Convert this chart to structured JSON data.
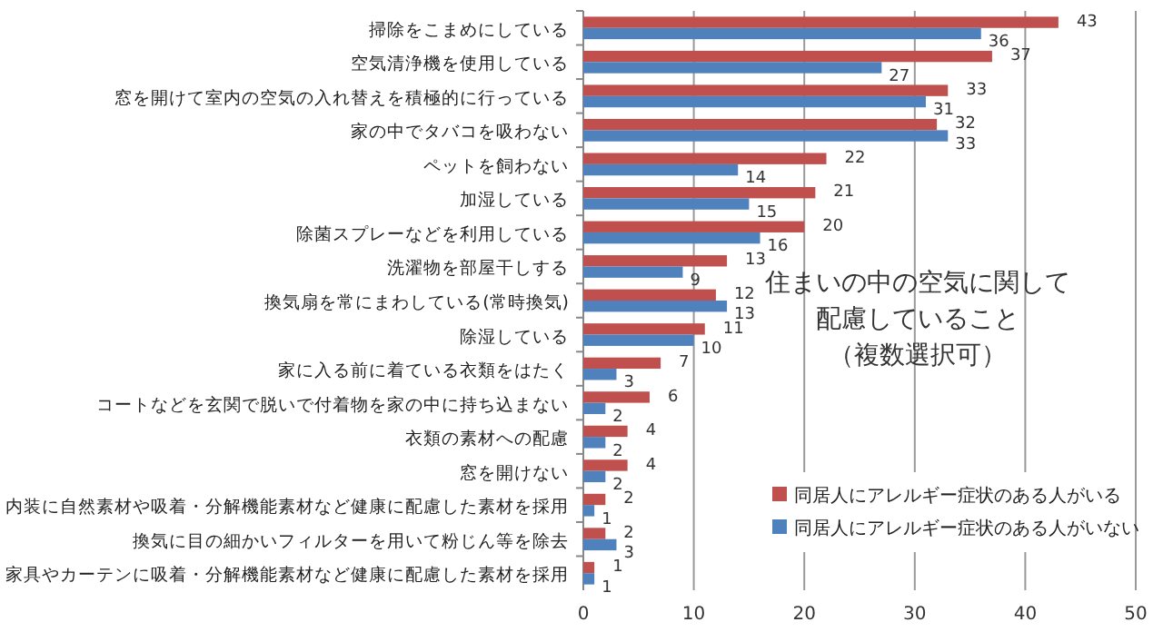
{
  "chart_data": {
    "type": "bar",
    "orientation": "horizontal",
    "title": "住まいの中の空気に関して配慮していること（複数選択可）",
    "categories": [
      "掃除をこまめにしている",
      "空気清浄機を使用している",
      "窓を開けて室内の空気の入れ替えを積極的に行っている",
      "家の中でタバコを吸わない",
      "ペットを飼わない",
      "加湿している",
      "除菌スプレーなどを利用している",
      "洗濯物を部屋干しする",
      "換気扇を常にまわしている(常時換気)",
      "除湿している",
      "家に入る前に着ている衣類をはたく",
      "コートなどを玄関で脱いで付着物を家の中に持ち込まない",
      "衣類の素材への配慮",
      "窓を開けない",
      "内装に自然素材や吸着・分解機能素材など健康に配慮した素材を採用",
      "換気に目の細かいフィルターを用いて粉じん等を除去",
      "家具やカーテンに吸着・分解機能素材など健康に配慮した素材を採用"
    ],
    "series": [
      {
        "name": "同居人にアレルギー症状のある人がいる",
        "color": "#c0504d",
        "values": [
          43,
          37,
          33,
          32,
          22,
          21,
          20,
          13,
          12,
          11,
          7,
          6,
          4,
          4,
          2,
          2,
          1
        ]
      },
      {
        "name": "同居人にアレルギー症状のある人がいない",
        "color": "#4f81bd",
        "values": [
          36,
          27,
          31,
          33,
          14,
          15,
          16,
          9,
          13,
          10,
          3,
          2,
          2,
          2,
          1,
          3,
          1
        ]
      }
    ],
    "xlim": [
      0,
      50
    ],
    "xticks": [
      0,
      10,
      20,
      30,
      40,
      50
    ],
    "grid": "x",
    "legend": "bottom right",
    "data_labels": true
  }
}
